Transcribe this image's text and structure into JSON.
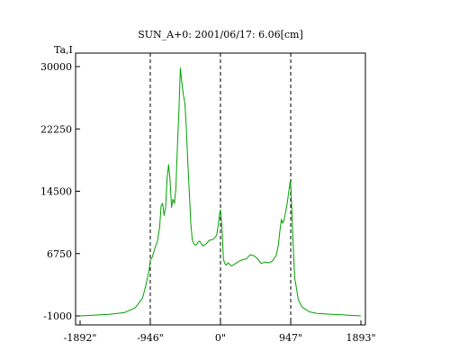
{
  "chart_data": {
    "type": "line",
    "title": "SUN_A+0: 2001/06/17: 6.06[cm]",
    "ylabel": "Ta,I",
    "xlabel": "",
    "xlim": [
      -1892,
      1893
    ],
    "ylim": [
      -1000,
      30000
    ],
    "x_ticks": [
      {
        "value": -1892,
        "label": "-1892\""
      },
      {
        "value": -946,
        "label": "-946\""
      },
      {
        "value": 0,
        "label": "0\""
      },
      {
        "value": 947,
        "label": "947\""
      },
      {
        "value": 1893,
        "label": "1893\""
      }
    ],
    "y_ticks": [
      {
        "value": 30000,
        "label": "30000"
      },
      {
        "value": 22250,
        "label": "22250"
      },
      {
        "value": 14500,
        "label": "14500"
      },
      {
        "value": 6750,
        "label": "6750"
      },
      {
        "value": -1000,
        "label": "-1000"
      }
    ],
    "vlines_dashed": [
      -946,
      0,
      947
    ],
    "grid": false,
    "series": [
      {
        "color": "#00a000",
        "x": [
          -1892,
          -1700,
          -1500,
          -1300,
          -1150,
          -1050,
          -1000,
          -960,
          -946,
          -920,
          -880,
          -850,
          -820,
          -800,
          -780,
          -760,
          -740,
          -720,
          -700,
          -680,
          -660,
          -640,
          -620,
          -600,
          -580,
          -560,
          -540,
          -520,
          -500,
          -480,
          -460,
          -440,
          -420,
          -400,
          -380,
          -360,
          -340,
          -320,
          -300,
          -280,
          -260,
          -240,
          -200,
          -150,
          -100,
          -50,
          -20,
          -10,
          0,
          10,
          20,
          40,
          60,
          80,
          100,
          150,
          200,
          250,
          300,
          350,
          400,
          450,
          500,
          550,
          600,
          650,
          700,
          750,
          780,
          800,
          820,
          840,
          860,
          880,
          900,
          920,
          940,
          947,
          960,
          980,
          1000,
          1050,
          1100,
          1200,
          1300,
          1500,
          1700,
          1893
        ],
        "y": [
          -1000,
          -900,
          -800,
          -600,
          0,
          1200,
          3000,
          4800,
          5900,
          6300,
          7500,
          8300,
          10000,
          12700,
          13000,
          11500,
          12500,
          16000,
          17800,
          16000,
          12500,
          13500,
          13000,
          15000,
          20000,
          24500,
          29800,
          28000,
          26500,
          25500,
          22500,
          18000,
          14500,
          10500,
          8500,
          8000,
          7800,
          7900,
          8200,
          8300,
          8000,
          7700,
          7900,
          8400,
          8500,
          9000,
          11000,
          11800,
          12200,
          11000,
          10000,
          6000,
          5500,
          5300,
          5600,
          5200,
          5500,
          5800,
          6000,
          6100,
          6600,
          6500,
          6100,
          5500,
          5700,
          5600,
          5800,
          6500,
          7800,
          9500,
          11000,
          10500,
          11000,
          12000,
          13000,
          14400,
          15700,
          15500,
          12500,
          8000,
          3800,
          1000,
          100,
          -500,
          -700,
          -800,
          -900,
          -1000
        ]
      }
    ]
  }
}
